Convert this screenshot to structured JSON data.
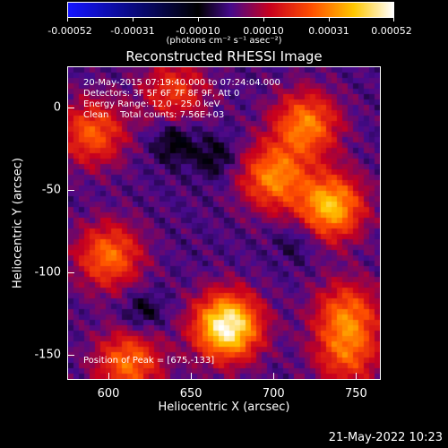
{
  "colorbar": {
    "ticks": [
      "-0.00052",
      "-0.00031",
      "-0.00010",
      "0.00010",
      "0.00031",
      "0.00052"
    ],
    "units": "(photons cm⁻² s⁻¹ asec⁻²)"
  },
  "chart_data": {
    "type": "heatmap",
    "title": "Reconstructed RHESSI Image",
    "xlabel": "Heliocentric X (arcsec)",
    "ylabel": "Heliocentric Y (arcsec)",
    "xlim": [
      575,
      765
    ],
    "ylim": [
      -165,
      25
    ],
    "xticks": [
      "600",
      "650",
      "700",
      "750"
    ],
    "yticks": [
      "0",
      "-50",
      "-100",
      "-150"
    ],
    "xtick_values": [
      600,
      650,
      700,
      750
    ],
    "ytick_values": [
      0,
      -50,
      -100,
      -150
    ],
    "value_range": [
      -0.00052,
      0.00052
    ],
    "peak": [
      675,
      -133
    ],
    "sources": [
      {
        "x": 672,
        "y": -133,
        "level": 1.0
      },
      {
        "x": 735,
        "y": -60,
        "level": 0.75
      },
      {
        "x": 700,
        "y": -42,
        "level": 0.6
      },
      {
        "x": 600,
        "y": -90,
        "level": 0.55
      },
      {
        "x": 612,
        "y": -155,
        "level": 0.55
      },
      {
        "x": 720,
        "y": -10,
        "level": 0.6
      },
      {
        "x": 590,
        "y": -15,
        "level": 0.5
      },
      {
        "x": 640,
        "y": 10,
        "level": 0.4
      },
      {
        "x": 745,
        "y": -125,
        "level": 0.5
      },
      {
        "x": 745,
        "y": -150,
        "level": 0.45
      }
    ]
  },
  "info": {
    "line1": "20-May-2015 07:19:40.000 to 07:24:04.000",
    "line2": "Detectors: 3F 5F 6F 7F 8F 9F, Att 0",
    "line3": "Energy Range: 12.0 - 25.0 keV",
    "line4": "Clean    Total counts: 7.56E+03",
    "peak": "Position of Peak = [675,-133]"
  },
  "timestamp": "21-May-2022 10:23"
}
